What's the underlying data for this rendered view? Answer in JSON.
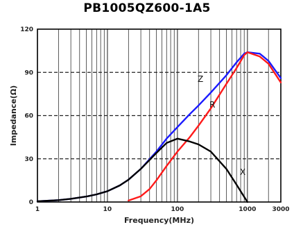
{
  "chart_data": {
    "type": "line",
    "title": "PB1005QZ600-1A5",
    "xlabel": "Frequency(MHz)",
    "ylabel": "Impedance(Ω)",
    "x_scale": "log",
    "xlim": [
      1,
      3000
    ],
    "ylim": [
      0,
      120
    ],
    "x_ticks": [
      {
        "value": 1,
        "label": "1"
      },
      {
        "value": 10,
        "label": "10"
      },
      {
        "value": 100,
        "label": "100"
      },
      {
        "value": 1000,
        "label": "1000"
      },
      {
        "value": 3000,
        "label": "3000"
      }
    ],
    "y_ticks": [
      {
        "value": 0,
        "label": "0"
      },
      {
        "value": 30,
        "label": "30"
      },
      {
        "value": 60,
        "label": "60"
      },
      {
        "value": 90,
        "label": "90"
      },
      {
        "value": 120,
        "label": "120"
      }
    ],
    "grid": true,
    "series": [
      {
        "name": "Z",
        "color": "#1a1aff",
        "x": [
          1,
          2,
          3,
          5,
          7,
          10,
          15,
          20,
          30,
          50,
          70,
          100,
          150,
          200,
          300,
          500,
          700,
          900,
          1000,
          1500,
          2000,
          3000
        ],
        "y": [
          0.5,
          1.3,
          2.2,
          3.8,
          5.3,
          7.5,
          11.5,
          15.5,
          23,
          35,
          44,
          52,
          61,
          67,
          76,
          88,
          97,
          103,
          104,
          103,
          98,
          86
        ]
      },
      {
        "name": "R",
        "color": "#ff1a1a",
        "x": [
          20,
          30,
          40,
          50,
          70,
          100,
          150,
          200,
          300,
          500,
          700,
          900,
          1000,
          1500,
          2000,
          3000
        ],
        "y": [
          1,
          4,
          9,
          15,
          25,
          35,
          45,
          53,
          65,
          82,
          93,
          102,
          104,
          101,
          96,
          83
        ]
      },
      {
        "name": "X",
        "color": "#000000",
        "x": [
          1,
          2,
          3,
          5,
          7,
          10,
          15,
          20,
          30,
          50,
          70,
          100,
          150,
          200,
          300,
          500,
          700,
          1000
        ],
        "y": [
          0.5,
          1.3,
          2.2,
          3.8,
          5.3,
          7.5,
          11.5,
          15.5,
          23,
          34,
          41,
          44,
          42,
          40,
          35,
          23,
          12,
          0
        ]
      }
    ]
  }
}
